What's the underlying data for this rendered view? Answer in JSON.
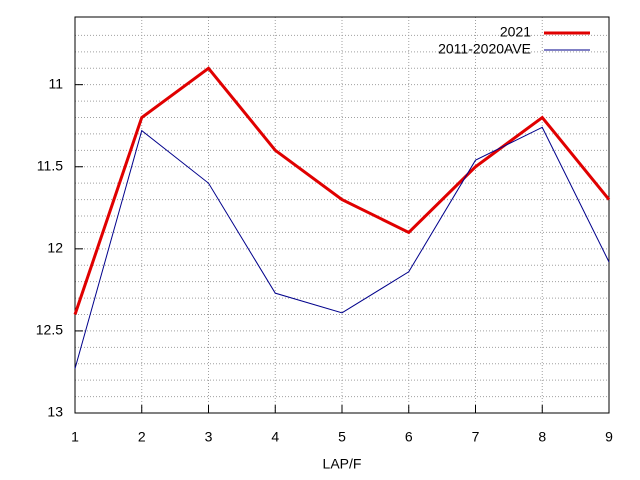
{
  "chart_data": {
    "type": "line",
    "x_label": "LAP/F",
    "x": [
      1,
      2,
      3,
      4,
      5,
      6,
      7,
      8,
      9
    ],
    "series": [
      {
        "name": "2021",
        "color": "#e00000",
        "values": [
          12.4,
          11.2,
          10.9,
          11.4,
          11.7,
          11.9,
          11.5,
          11.2,
          11.7
        ]
      },
      {
        "name": "2011-2020AVE",
        "color": "#00008b",
        "values": [
          12.73,
          11.28,
          11.6,
          12.27,
          12.39,
          12.14,
          11.46,
          11.26,
          12.08
        ]
      }
    ],
    "xlim": [
      1,
      9
    ],
    "xticks": [
      1,
      2,
      3,
      4,
      5,
      6,
      7,
      8,
      9
    ],
    "ylim": [
      13,
      10.6
    ],
    "yticks": [
      11,
      11.5,
      12,
      12.5,
      13
    ],
    "y_minor_grid": [
      10.7,
      10.8,
      10.9,
      11.1,
      11.2,
      11.3,
      11.4,
      11.6,
      11.7,
      11.8,
      11.9,
      12.1,
      12.2,
      12.3,
      12.4,
      12.6,
      12.7,
      12.8,
      12.9
    ],
    "y_reversed": true,
    "grid": true,
    "legend": "top-right"
  }
}
